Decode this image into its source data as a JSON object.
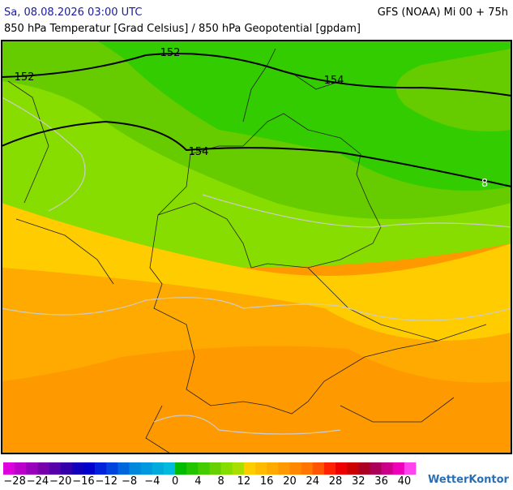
{
  "header": {
    "valid_time": "Sa, 08.08.2026 03:00 UTC",
    "model": "GFS (NOAA) Mi 00 + 75h",
    "subtitle": "850 hPa Temperatur [Grad Celsius] / 850 hPa Geopotential [gpdam]"
  },
  "map": {
    "contour_labels": [
      "152",
      "152",
      "154",
      "154",
      "8"
    ]
  },
  "colorbar": {
    "labels": [
      "−28",
      "−24",
      "−20",
      "−16",
      "−12",
      "−8",
      "−4",
      "0",
      "4",
      "8",
      "12",
      "16",
      "20",
      "24",
      "28",
      "32",
      "36",
      "40"
    ],
    "colors": [
      "#dd00dd",
      "#bb00cc",
      "#9900bb",
      "#7700aa",
      "#5500aa",
      "#3300aa",
      "#1100bb",
      "#0000cc",
      "#0022dd",
      "#0044dd",
      "#0066dd",
      "#0088dd",
      "#0099dd",
      "#00aadd",
      "#00bbdd",
      "#00bb00",
      "#22c400",
      "#44cc00",
      "#66d000",
      "#88dd00",
      "#aadd00",
      "#ffcc00",
      "#ffbb00",
      "#ffaa00",
      "#ff9900",
      "#ff8800",
      "#ff7700",
      "#ff5500",
      "#ff2200",
      "#ee0000",
      "#cc0000",
      "#aa0022",
      "#aa0055",
      "#cc0088",
      "#ee00bb",
      "#ff44ee"
    ]
  },
  "logo": "WetterKontor"
}
